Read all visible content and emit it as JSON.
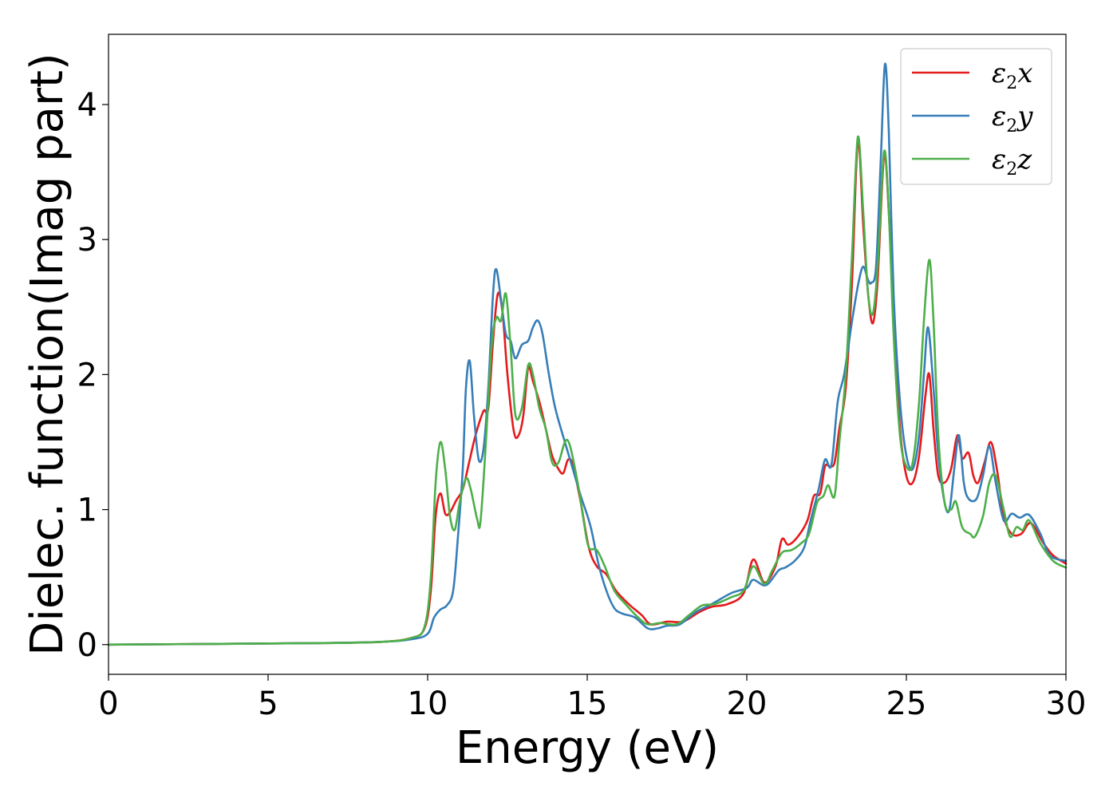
{
  "chart_data": {
    "type": "line",
    "xlabel": "Energy (eV)",
    "ylabel": "Dielec. function(Imag part)",
    "xlim": [
      0,
      30
    ],
    "ylim": [
      -0.22,
      4.52
    ],
    "xticks": [
      0,
      5,
      10,
      15,
      20,
      25,
      30
    ],
    "yticks": [
      0,
      1,
      2,
      3,
      4
    ],
    "grid": false,
    "legend_position": "top-right",
    "series": [
      {
        "name": "ε2x",
        "color": "#e41a1c",
        "points": [
          [
            0,
            0
          ],
          [
            6,
            0.01
          ],
          [
            8.5,
            0.02
          ],
          [
            9.5,
            0.05
          ],
          [
            9.9,
            0.12
          ],
          [
            10.1,
            0.4
          ],
          [
            10.25,
            0.95
          ],
          [
            10.4,
            1.12
          ],
          [
            10.55,
            0.97
          ],
          [
            10.7,
            0.98
          ],
          [
            10.9,
            1.07
          ],
          [
            11.1,
            1.15
          ],
          [
            11.3,
            1.35
          ],
          [
            11.5,
            1.55
          ],
          [
            11.75,
            1.73
          ],
          [
            11.9,
            1.75
          ],
          [
            12.05,
            2.25
          ],
          [
            12.2,
            2.6
          ],
          [
            12.35,
            2.45
          ],
          [
            12.5,
            2.0
          ],
          [
            12.7,
            1.58
          ],
          [
            12.85,
            1.55
          ],
          [
            13.0,
            1.7
          ],
          [
            13.15,
            2.05
          ],
          [
            13.3,
            1.95
          ],
          [
            13.5,
            1.8
          ],
          [
            13.7,
            1.6
          ],
          [
            13.9,
            1.4
          ],
          [
            14.1,
            1.3
          ],
          [
            14.25,
            1.27
          ],
          [
            14.4,
            1.37
          ],
          [
            14.55,
            1.33
          ],
          [
            14.8,
            1.05
          ],
          [
            15.05,
            0.72
          ],
          [
            15.3,
            0.58
          ],
          [
            15.6,
            0.52
          ],
          [
            15.9,
            0.4
          ],
          [
            16.3,
            0.3
          ],
          [
            16.7,
            0.22
          ],
          [
            17.0,
            0.15
          ],
          [
            17.5,
            0.17
          ],
          [
            18.0,
            0.17
          ],
          [
            18.5,
            0.24
          ],
          [
            18.9,
            0.28
          ],
          [
            19.4,
            0.3
          ],
          [
            19.9,
            0.38
          ],
          [
            20.2,
            0.63
          ],
          [
            20.55,
            0.46
          ],
          [
            20.9,
            0.58
          ],
          [
            21.1,
            0.78
          ],
          [
            21.3,
            0.74
          ],
          [
            21.6,
            0.8
          ],
          [
            21.9,
            0.92
          ],
          [
            22.1,
            1.1
          ],
          [
            22.3,
            1.12
          ],
          [
            22.45,
            1.32
          ],
          [
            22.6,
            1.32
          ],
          [
            22.75,
            1.35
          ],
          [
            22.9,
            1.6
          ],
          [
            23.1,
            1.9
          ],
          [
            23.3,
            2.7
          ],
          [
            23.48,
            3.73
          ],
          [
            23.65,
            3.1
          ],
          [
            23.8,
            2.6
          ],
          [
            23.95,
            2.38
          ],
          [
            24.1,
            2.7
          ],
          [
            24.3,
            3.62
          ],
          [
            24.45,
            3.2
          ],
          [
            24.6,
            2.4
          ],
          [
            24.8,
            1.6
          ],
          [
            25.0,
            1.25
          ],
          [
            25.2,
            1.2
          ],
          [
            25.4,
            1.4
          ],
          [
            25.6,
            1.85
          ],
          [
            25.72,
            2.0
          ],
          [
            25.85,
            1.6
          ],
          [
            26.0,
            1.25
          ],
          [
            26.2,
            1.2
          ],
          [
            26.4,
            1.3
          ],
          [
            26.6,
            1.55
          ],
          [
            26.75,
            1.38
          ],
          [
            26.95,
            1.42
          ],
          [
            27.1,
            1.25
          ],
          [
            27.25,
            1.2
          ],
          [
            27.45,
            1.35
          ],
          [
            27.65,
            1.5
          ],
          [
            27.85,
            1.28
          ],
          [
            28.05,
            0.95
          ],
          [
            28.3,
            0.82
          ],
          [
            28.6,
            0.82
          ],
          [
            28.9,
            0.9
          ],
          [
            29.3,
            0.75
          ],
          [
            29.6,
            0.66
          ],
          [
            30,
            0.6
          ]
        ]
      },
      {
        "name": "ε2y",
        "color": "#377eb8",
        "points": [
          [
            0,
            0
          ],
          [
            6,
            0.01
          ],
          [
            8.5,
            0.02
          ],
          [
            9.5,
            0.04
          ],
          [
            10.0,
            0.08
          ],
          [
            10.2,
            0.2
          ],
          [
            10.4,
            0.26
          ],
          [
            10.6,
            0.29
          ],
          [
            10.8,
            0.4
          ],
          [
            10.95,
            0.8
          ],
          [
            11.1,
            1.3
          ],
          [
            11.2,
            1.9
          ],
          [
            11.32,
            2.1
          ],
          [
            11.45,
            1.7
          ],
          [
            11.6,
            1.37
          ],
          [
            11.75,
            1.45
          ],
          [
            11.9,
            1.9
          ],
          [
            12.05,
            2.6
          ],
          [
            12.15,
            2.78
          ],
          [
            12.3,
            2.55
          ],
          [
            12.45,
            2.3
          ],
          [
            12.6,
            2.25
          ],
          [
            12.75,
            2.12
          ],
          [
            12.95,
            2.22
          ],
          [
            13.15,
            2.25
          ],
          [
            13.3,
            2.35
          ],
          [
            13.45,
            2.4
          ],
          [
            13.6,
            2.3
          ],
          [
            13.8,
            2.0
          ],
          [
            14.0,
            1.75
          ],
          [
            14.3,
            1.5
          ],
          [
            14.55,
            1.3
          ],
          [
            14.8,
            1.1
          ],
          [
            15.1,
            0.88
          ],
          [
            15.35,
            0.6
          ],
          [
            15.6,
            0.4
          ],
          [
            15.85,
            0.27
          ],
          [
            16.1,
            0.23
          ],
          [
            16.5,
            0.2
          ],
          [
            16.9,
            0.12
          ],
          [
            17.2,
            0.12
          ],
          [
            17.5,
            0.14
          ],
          [
            17.9,
            0.15
          ],
          [
            18.4,
            0.24
          ],
          [
            18.9,
            0.3
          ],
          [
            19.5,
            0.38
          ],
          [
            20.0,
            0.42
          ],
          [
            20.2,
            0.48
          ],
          [
            20.6,
            0.44
          ],
          [
            21.0,
            0.55
          ],
          [
            21.2,
            0.57
          ],
          [
            21.5,
            0.62
          ],
          [
            21.8,
            0.72
          ],
          [
            22.0,
            0.92
          ],
          [
            22.25,
            1.15
          ],
          [
            22.45,
            1.37
          ],
          [
            22.65,
            1.33
          ],
          [
            22.85,
            1.8
          ],
          [
            23.05,
            2.0
          ],
          [
            23.3,
            2.4
          ],
          [
            23.5,
            2.68
          ],
          [
            23.65,
            2.8
          ],
          [
            23.8,
            2.7
          ],
          [
            23.9,
            2.68
          ],
          [
            24.05,
            2.8
          ],
          [
            24.2,
            3.6
          ],
          [
            24.33,
            4.3
          ],
          [
            24.45,
            3.8
          ],
          [
            24.6,
            2.6
          ],
          [
            24.8,
            1.8
          ],
          [
            25.0,
            1.4
          ],
          [
            25.2,
            1.3
          ],
          [
            25.4,
            1.55
          ],
          [
            25.55,
            2.0
          ],
          [
            25.68,
            2.35
          ],
          [
            25.85,
            1.9
          ],
          [
            26.0,
            1.4
          ],
          [
            26.2,
            1.05
          ],
          [
            26.35,
            1.0
          ],
          [
            26.5,
            1.3
          ],
          [
            26.65,
            1.55
          ],
          [
            26.8,
            1.2
          ],
          [
            26.95,
            1.08
          ],
          [
            27.2,
            1.08
          ],
          [
            27.4,
            1.25
          ],
          [
            27.6,
            1.47
          ],
          [
            27.8,
            1.2
          ],
          [
            28.05,
            0.92
          ],
          [
            28.3,
            0.97
          ],
          [
            28.55,
            0.94
          ],
          [
            28.85,
            0.96
          ],
          [
            29.2,
            0.82
          ],
          [
            29.5,
            0.66
          ],
          [
            30,
            0.62
          ]
        ]
      },
      {
        "name": "ε2z",
        "color": "#4daf4a",
        "points": [
          [
            0,
            0
          ],
          [
            6,
            0.01
          ],
          [
            8.5,
            0.02
          ],
          [
            9.5,
            0.05
          ],
          [
            9.9,
            0.13
          ],
          [
            10.1,
            0.5
          ],
          [
            10.25,
            1.2
          ],
          [
            10.4,
            1.5
          ],
          [
            10.55,
            1.3
          ],
          [
            10.7,
            0.95
          ],
          [
            10.85,
            0.85
          ],
          [
            11.0,
            1.05
          ],
          [
            11.2,
            1.23
          ],
          [
            11.35,
            1.15
          ],
          [
            11.55,
            0.93
          ],
          [
            11.65,
            0.9
          ],
          [
            11.8,
            1.4
          ],
          [
            12.0,
            2.2
          ],
          [
            12.15,
            2.42
          ],
          [
            12.3,
            2.4
          ],
          [
            12.45,
            2.6
          ],
          [
            12.6,
            2.2
          ],
          [
            12.75,
            1.7
          ],
          [
            12.95,
            1.75
          ],
          [
            13.15,
            2.07
          ],
          [
            13.3,
            2.0
          ],
          [
            13.5,
            1.75
          ],
          [
            13.7,
            1.6
          ],
          [
            13.9,
            1.35
          ],
          [
            14.1,
            1.35
          ],
          [
            14.3,
            1.5
          ],
          [
            14.45,
            1.48
          ],
          [
            14.7,
            1.2
          ],
          [
            14.9,
            0.9
          ],
          [
            15.05,
            0.72
          ],
          [
            15.3,
            0.7
          ],
          [
            15.55,
            0.58
          ],
          [
            15.85,
            0.4
          ],
          [
            16.2,
            0.3
          ],
          [
            16.6,
            0.2
          ],
          [
            16.9,
            0.15
          ],
          [
            17.3,
            0.16
          ],
          [
            17.8,
            0.15
          ],
          [
            18.2,
            0.22
          ],
          [
            18.6,
            0.29
          ],
          [
            19.0,
            0.3
          ],
          [
            19.5,
            0.35
          ],
          [
            19.9,
            0.4
          ],
          [
            20.2,
            0.58
          ],
          [
            20.55,
            0.45
          ],
          [
            20.8,
            0.55
          ],
          [
            21.1,
            0.68
          ],
          [
            21.4,
            0.7
          ],
          [
            21.7,
            0.75
          ],
          [
            21.95,
            0.82
          ],
          [
            22.2,
            1.05
          ],
          [
            22.4,
            1.1
          ],
          [
            22.55,
            1.18
          ],
          [
            22.75,
            1.1
          ],
          [
            22.9,
            1.5
          ],
          [
            23.1,
            2.0
          ],
          [
            23.3,
            2.9
          ],
          [
            23.48,
            3.76
          ],
          [
            23.65,
            3.2
          ],
          [
            23.8,
            2.6
          ],
          [
            23.95,
            2.45
          ],
          [
            24.1,
            2.8
          ],
          [
            24.3,
            3.65
          ],
          [
            24.45,
            3.2
          ],
          [
            24.6,
            2.3
          ],
          [
            24.8,
            1.55
          ],
          [
            25.0,
            1.32
          ],
          [
            25.2,
            1.35
          ],
          [
            25.4,
            1.8
          ],
          [
            25.55,
            2.4
          ],
          [
            25.72,
            2.85
          ],
          [
            25.85,
            2.4
          ],
          [
            26.0,
            1.55
          ],
          [
            26.2,
            1.05
          ],
          [
            26.4,
            1.0
          ],
          [
            26.55,
            1.06
          ],
          [
            26.75,
            0.87
          ],
          [
            27.0,
            0.82
          ],
          [
            27.15,
            0.8
          ],
          [
            27.4,
            0.95
          ],
          [
            27.6,
            1.2
          ],
          [
            27.8,
            1.25
          ],
          [
            28.05,
            1.0
          ],
          [
            28.25,
            0.8
          ],
          [
            28.45,
            0.87
          ],
          [
            28.65,
            0.85
          ],
          [
            28.85,
            0.92
          ],
          [
            29.2,
            0.75
          ],
          [
            29.6,
            0.62
          ],
          [
            30,
            0.57
          ]
        ]
      }
    ]
  }
}
